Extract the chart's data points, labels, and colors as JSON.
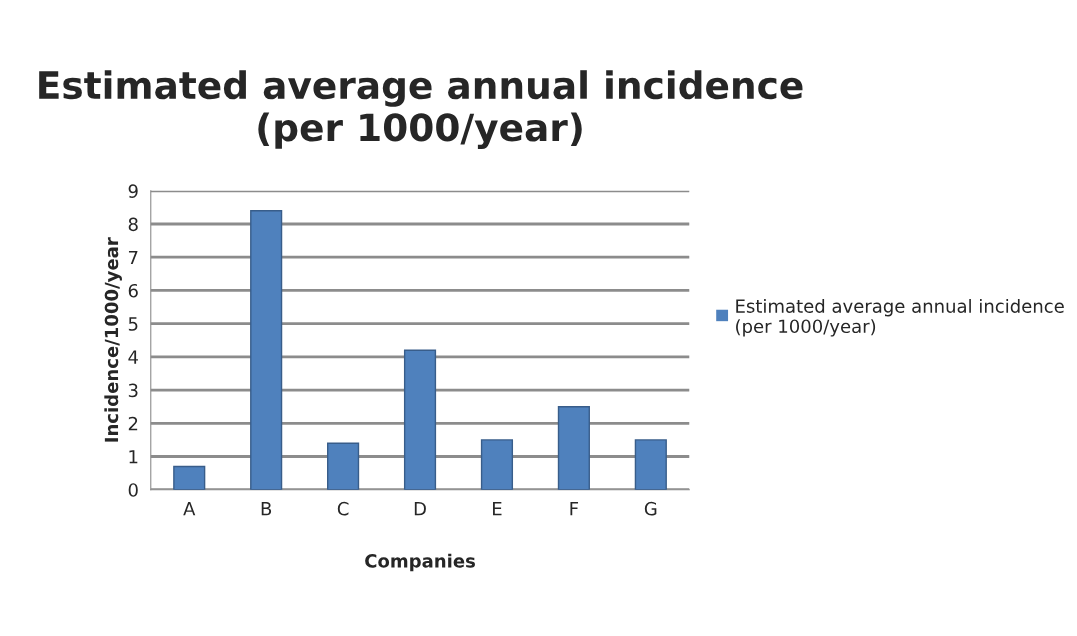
{
  "chart_data": {
    "type": "bar",
    "title": "Estimated average annual incidence (per 1000/year)",
    "xlabel": "Companies",
    "ylabel": "Incidence/1000/year",
    "categories": [
      "A",
      "B",
      "C",
      "D",
      "E",
      "F",
      "G"
    ],
    "series": [
      {
        "name": "Estimated average annual incidence (per 1000/year)",
        "color": "#4f81bd",
        "values": [
          0.7,
          8.4,
          1.4,
          4.2,
          1.5,
          2.5,
          1.5
        ]
      }
    ],
    "ylim": [
      0,
      9
    ],
    "yticks": [
      0,
      1,
      2,
      3,
      4,
      5,
      6,
      7,
      8,
      9
    ],
    "grid": "y",
    "legend": "right"
  }
}
